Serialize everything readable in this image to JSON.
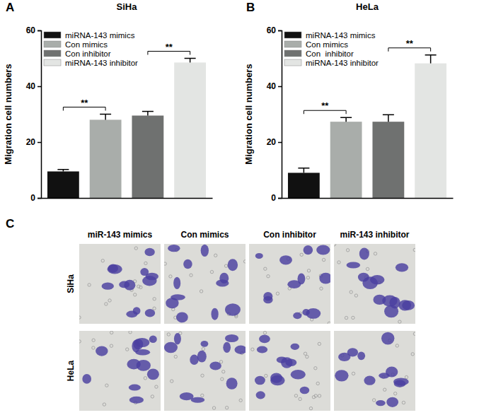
{
  "chart_data": [
    {
      "type": "bar",
      "title": "SiHa",
      "annotations": [
        "A"
      ],
      "ylabel": "Migration cell numbers",
      "ylim": [
        0,
        60
      ],
      "yticks": [
        0,
        20,
        40,
        60
      ],
      "tick_labels": "y",
      "legend": "upper left",
      "series": [
        {
          "name": "miRNA-143 mimics",
          "color": "#111111",
          "values": [
            9.5
          ],
          "errors": [
            0.7
          ]
        },
        {
          "name": "Con mimics",
          "color": "#a9adaa",
          "values": [
            28
          ],
          "errors": [
            2
          ]
        },
        {
          "name": "Con inhibitor",
          "color": "#6f7170",
          "values": [
            29.5
          ],
          "errors": [
            1.5
          ]
        },
        {
          "name": "miRNA-143 inhibitor",
          "color": "#e3e5e3",
          "values": [
            48.5
          ],
          "errors": [
            1.5
          ]
        }
      ],
      "significance": [
        {
          "from": 0,
          "to": 1,
          "label": "**"
        },
        {
          "from": 2,
          "to": 3,
          "label": "**"
        }
      ]
    },
    {
      "type": "bar",
      "title": "HeLa",
      "annotations": [
        "B"
      ],
      "ylabel": "Migration cell numbers",
      "ylim": [
        0,
        60
      ],
      "yticks": [
        0,
        20,
        40,
        60
      ],
      "tick_labels": "y",
      "legend": "upper left",
      "series": [
        {
          "name": "miRNA-143 mimics",
          "color": "#111111",
          "values": [
            9
          ],
          "errors": [
            1.7
          ]
        },
        {
          "name": "Con mimics",
          "color": "#a9adaa",
          "values": [
            27.3
          ],
          "errors": [
            1.5
          ]
        },
        {
          "name": "Con  inhibitor",
          "color": "#6f7170",
          "values": [
            27.3
          ],
          "errors": [
            2.5
          ]
        },
        {
          "name": "miRNA-143 inhibitor",
          "color": "#e3e5e3",
          "values": [
            48.2
          ],
          "errors": [
            3
          ]
        }
      ],
      "significance": [
        {
          "from": 0,
          "to": 1,
          "label": "**"
        },
        {
          "from": 2,
          "to": 3,
          "label": "**"
        }
      ]
    }
  ],
  "image_panel": {
    "label": "C",
    "columns": [
      "miR-143 mimics",
      "Con mimics",
      "Con inhibitor",
      "miR-143 inhibitor"
    ],
    "rows": [
      "SiHa",
      "HeLa"
    ]
  }
}
